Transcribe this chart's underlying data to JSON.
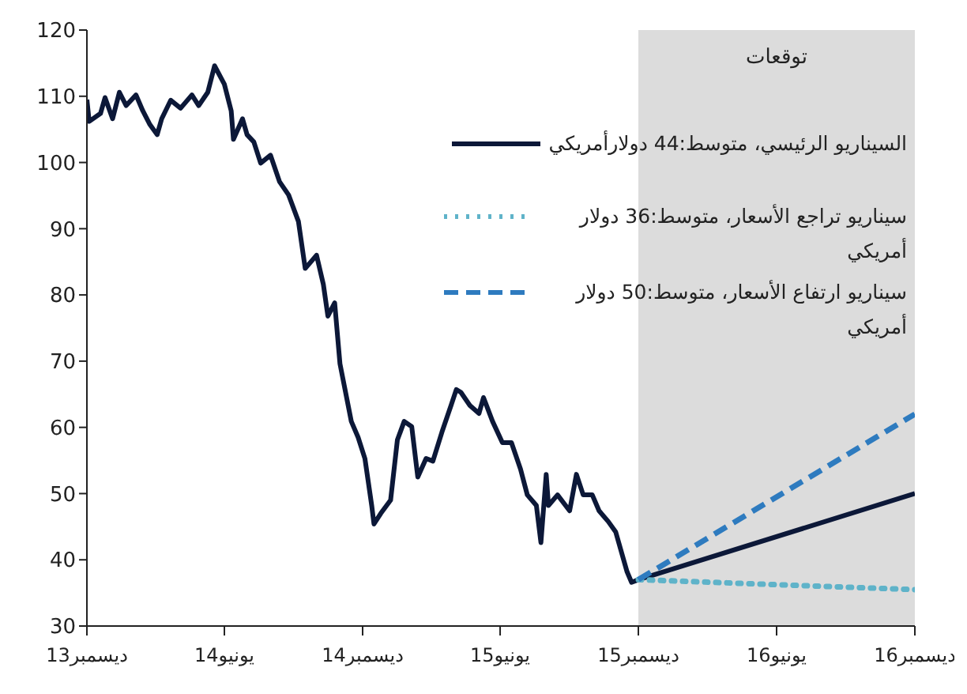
{
  "chart_data": {
    "type": "line",
    "xlim": [
      "2013-12",
      "2016-12"
    ],
    "xticks": [
      {
        "value": "2013-12",
        "label": "ديسمبر13"
      },
      {
        "value": "2014-06",
        "label": "يونيو14"
      },
      {
        "value": "2014-12",
        "label": "ديسمبر14"
      },
      {
        "value": "2015-06",
        "label": "يونيو15"
      },
      {
        "value": "2015-12",
        "label": "ديسمبر15"
      },
      {
        "value": "2016-06",
        "label": "يونيو16"
      },
      {
        "value": "2016-12",
        "label": "ديسمبر16"
      }
    ],
    "ylim": [
      30,
      120
    ],
    "yticks": [
      30,
      40,
      50,
      60,
      70,
      80,
      90,
      100,
      110,
      120
    ],
    "legend": "top right",
    "bands": [
      {
        "axis": "x",
        "from": "2015-12",
        "to": "2016-12",
        "label": "توقعات",
        "color": "#dcdcdc"
      }
    ],
    "series": [
      {
        "name": "السيناريو الرئيسي، متوسط:44 دولارأمريكي",
        "color": "#0c1838",
        "line_style": "solid",
        "x": [
          "2013-12-01",
          "2013-12-04",
          "2013-12-19",
          "2013-12-25",
          "2014-01-04",
          "2014-01-13",
          "2014-01-22",
          "2014-02-04",
          "2014-02-13",
          "2014-02-22",
          "2014-03-04",
          "2014-03-10",
          "2014-03-22",
          "2014-04-04",
          "2014-04-19",
          "2014-04-28",
          "2014-05-10",
          "2014-05-19",
          "2014-06-01",
          "2014-06-10",
          "2014-06-13",
          "2014-06-25",
          "2014-07-01",
          "2014-07-10",
          "2014-07-19",
          "2014-08-01",
          "2014-08-13",
          "2014-08-25",
          "2014-09-07",
          "2014-09-16",
          "2014-10-01",
          "2014-10-10",
          "2014-10-16",
          "2014-10-25",
          "2014-11-01",
          "2014-11-16",
          "2014-11-25",
          "2014-12-04",
          "2014-12-13",
          "2014-12-16",
          "2014-12-25",
          "2015-01-07",
          "2015-01-16",
          "2015-01-25",
          "2015-02-04",
          "2015-02-12",
          "2015-02-23",
          "2015-03-04",
          "2015-03-16",
          "2015-03-28",
          "2015-04-04",
          "2015-04-10",
          "2015-04-22",
          "2015-05-04",
          "2015-05-10",
          "2015-05-22",
          "2015-06-04",
          "2015-06-16",
          "2015-06-28",
          "2015-07-07",
          "2015-07-19",
          "2015-07-25",
          "2015-08-01",
          "2015-08-04",
          "2015-08-16",
          "2015-09-01",
          "2015-09-10",
          "2015-09-19",
          "2015-10-01",
          "2015-10-10",
          "2015-10-22",
          "2015-11-01",
          "2015-11-16",
          "2015-11-22",
          "2015-12-01",
          "2016-12-01"
        ],
        "values": [
          109.5,
          106.2,
          107.4,
          109.8,
          106.6,
          110.6,
          108.6,
          110.2,
          107.8,
          105.8,
          104.2,
          106.6,
          109.4,
          108.2,
          110.2,
          108.6,
          110.6,
          114.6,
          111.8,
          107.8,
          103.5,
          106.6,
          104.2,
          103.1,
          99.9,
          101.1,
          97.1,
          95.1,
          91.1,
          84.0,
          86.0,
          81.6,
          76.8,
          78.8,
          69.6,
          60.9,
          58.5,
          55.3,
          48.2,
          45.4,
          47.0,
          49.0,
          58.1,
          60.9,
          60.1,
          52.5,
          55.3,
          54.9,
          59.3,
          63.3,
          65.7,
          65.3,
          63.3,
          62.1,
          64.5,
          60.9,
          57.7,
          57.7,
          53.7,
          49.8,
          48.2,
          42.6,
          52.9,
          48.2,
          49.8,
          47.4,
          52.9,
          49.8,
          49.8,
          47.4,
          45.8,
          44.2,
          38.2,
          36.6,
          37,
          50
        ]
      },
      {
        "name": "سيناريو تراجع الأسعار، متوسط:36 دولار أمريكي",
        "color": "#5fb3c9",
        "line_style": "dotted",
        "x": [
          "2015-12-01",
          "2016-12-01"
        ],
        "values": [
          37,
          35.5
        ]
      },
      {
        "name": "سيناريو ارتفاع الأسعار، متوسط:50 دولار أمريكي",
        "color": "#2e7bbf",
        "line_style": "dashed",
        "x": [
          "2015-12-01",
          "2016-12-01"
        ],
        "values": [
          37,
          62
        ]
      }
    ]
  }
}
